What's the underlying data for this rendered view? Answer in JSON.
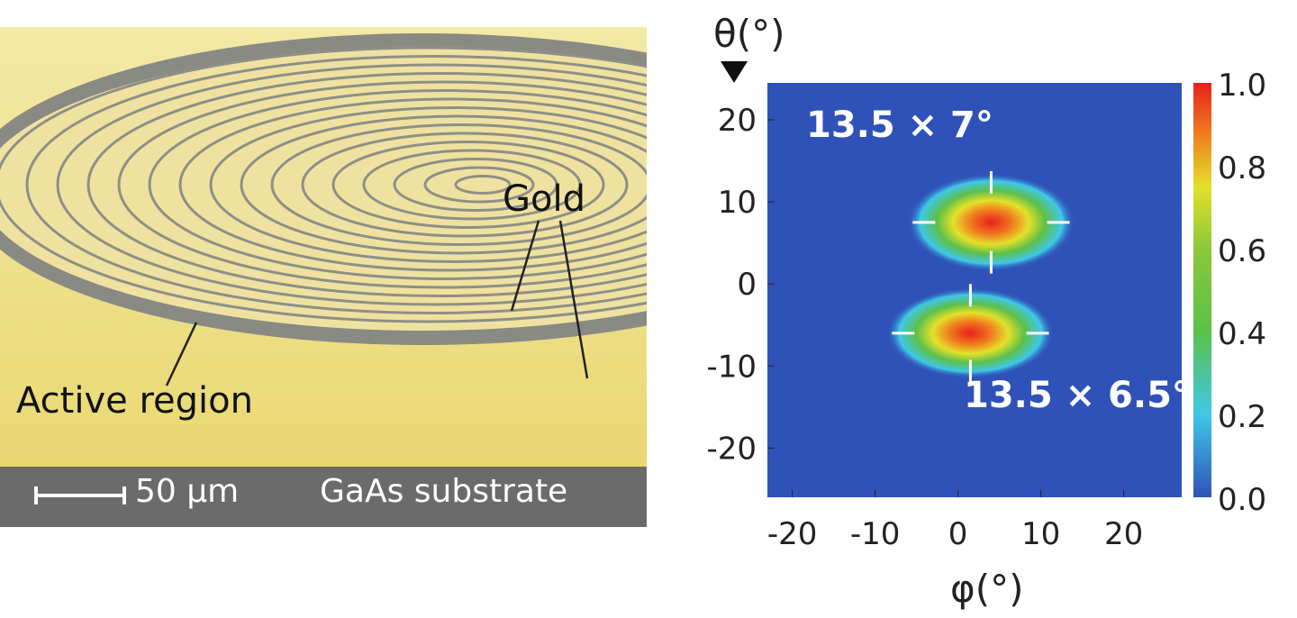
{
  "sem_image": {
    "labels": {
      "gold": "Gold",
      "active_region": "Active region",
      "substrate": "GaAs substrate",
      "scale_bar": "50 µm"
    },
    "colors": {
      "gold": "#e9d97a",
      "substrate": "#6b6b6b",
      "groove": "#8a8a84"
    }
  },
  "chart_data": {
    "type": "heatmap",
    "title": "",
    "xlabel": "φ(°)",
    "ylabel": "θ(°)",
    "xlim": [
      -23,
      27
    ],
    "ylim": [
      -26,
      24.5
    ],
    "xticks": [
      -20,
      -10,
      0,
      10,
      20
    ],
    "yticks": [
      20,
      10,
      0,
      -10,
      -20
    ],
    "colorbar": {
      "ticks": [
        "1.0",
        "0.8",
        "0.6",
        "0.4",
        "0.2",
        "0.0"
      ],
      "range": [
        0,
        1
      ],
      "colormap": "jet"
    },
    "spots": [
      {
        "name": "upper-lobe",
        "phi": 4,
        "theta": 7.5,
        "fwhm_phi": 13.5,
        "fwhm_theta": 7,
        "peak": 1.0
      },
      {
        "name": "lower-lobe",
        "phi": 1.5,
        "theta": -6,
        "fwhm_phi": 13.5,
        "fwhm_theta": 6.5,
        "peak": 1.0
      }
    ],
    "annotations": [
      "13.5 × 7°",
      "13.5 × 6.5°"
    ],
    "background_color": "#2f52b8"
  }
}
